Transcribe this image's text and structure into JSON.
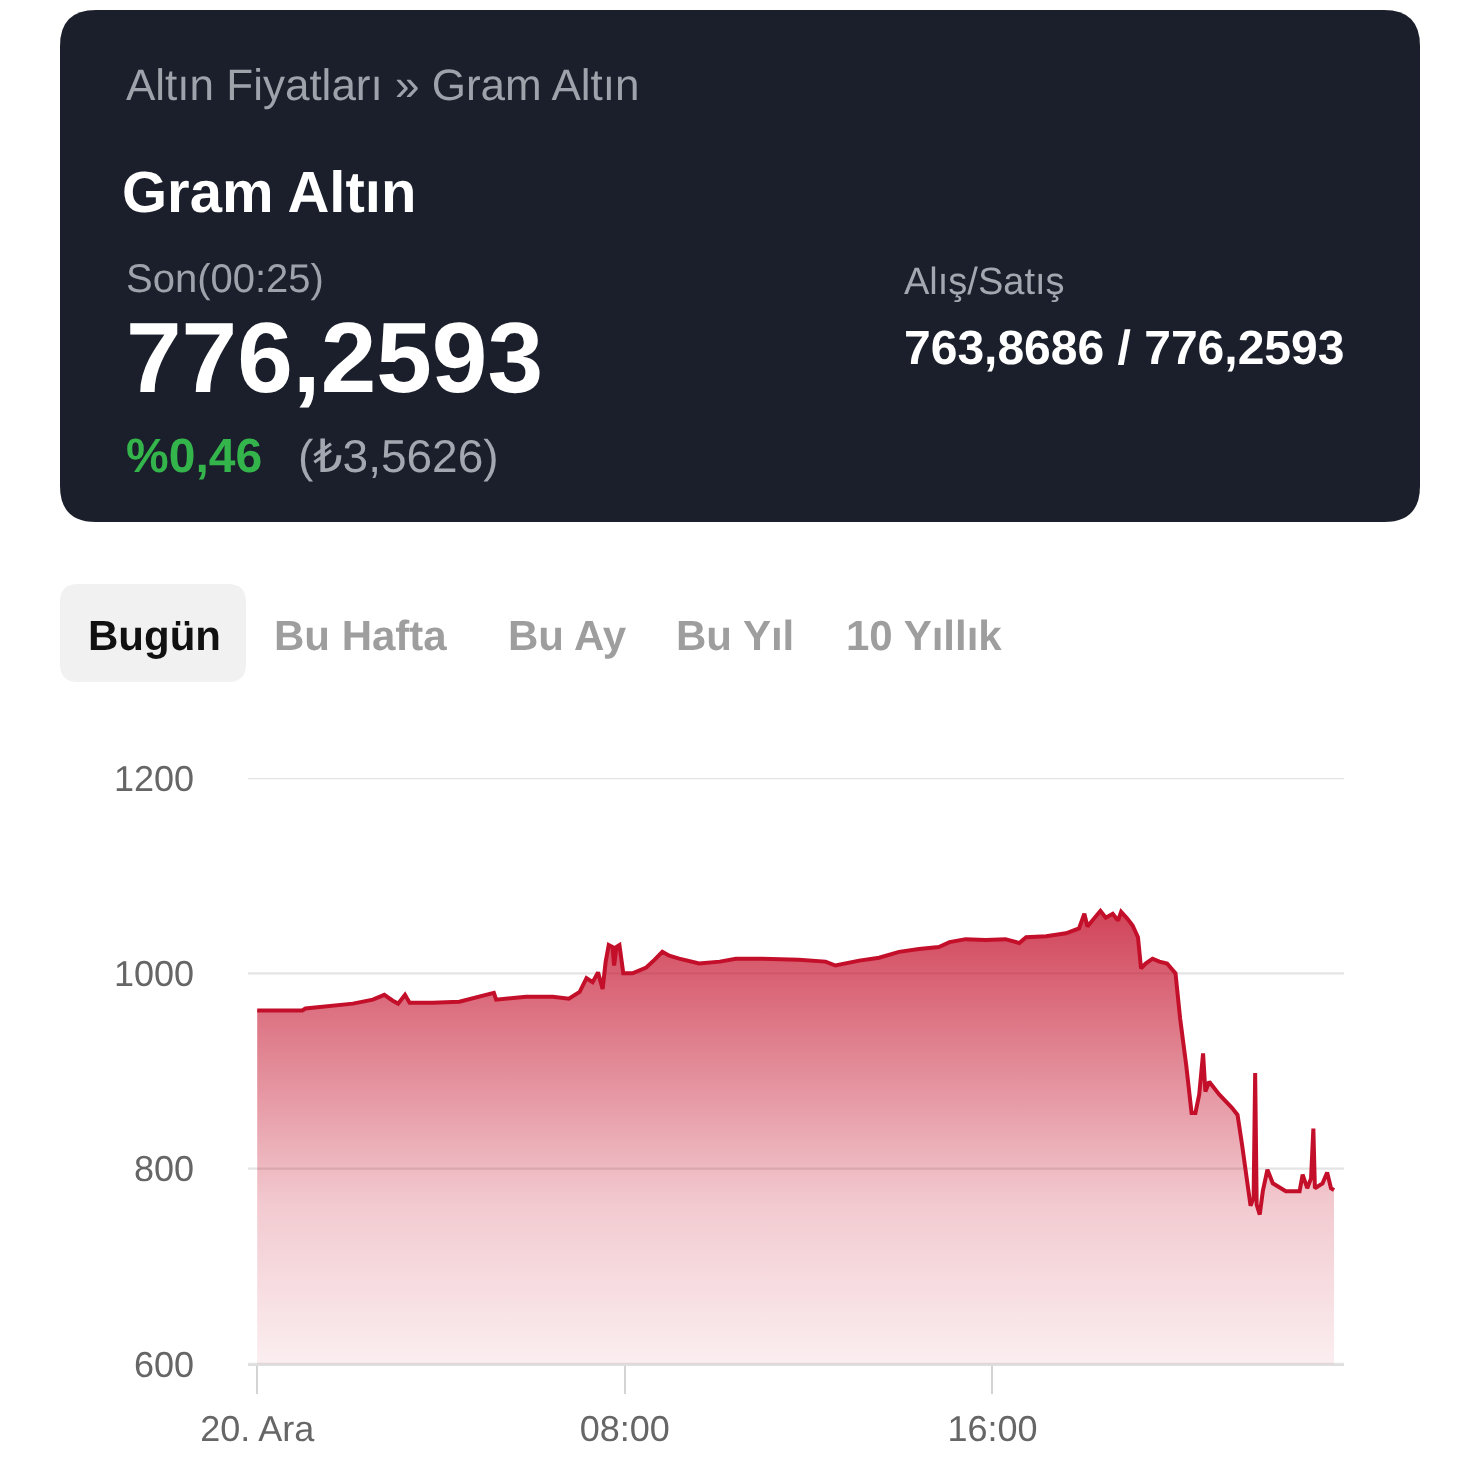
{
  "chart_data": {
    "type": "area",
    "title": "Gram Altın",
    "annotations": [
      "Altın Fiyatları » Gram Altın",
      "Son(00:25)",
      "776,2593",
      "%0,46",
      "(₺3,5626)",
      "Alış/Satış",
      "763,8686 / 776,2593",
      "Bugün",
      "Bu Hafta",
      "Bu Ay",
      "Bu Yıl",
      "10 Yıllık"
    ],
    "x": [
      "--12-20T00:00",
      "--12-20T00:59",
      "--12-20T01:03",
      "--12-20T02:05",
      "--12-20T02:31",
      "--12-20T02:46",
      "--12-20T02:57",
      "--12-20T03:04",
      "--12-20T03:13",
      "--12-20T03:19",
      "--12-20T03:49",
      "--12-20T04:24",
      "--12-20T05:09",
      "--12-20T05:12",
      "--12-20T05:51",
      "--12-20T06:26",
      "--12-20T06:47",
      "--12-20T07:01",
      "--12-20T07:10",
      "--12-20T07:18",
      "--12-20T07:25",
      "--12-20T07:31",
      "--12-20T07:35",
      "--12-20T07:39",
      "--12-20T07:44",
      "--12-20T07:46",
      "--12-20T07:49",
      "--12-20T07:53",
      "--12-20T07:58",
      "--12-20T08:10",
      "--12-20T08:28",
      "--12-20T08:39",
      "--12-20T08:49",
      "--12-20T08:58",
      "--12-20T09:11",
      "--12-20T09:37",
      "--12-20T10:04",
      "--12-20T10:25",
      "--12-20T10:55",
      "--12-20T11:47",
      "--12-20T12:22",
      "--12-20T12:35",
      "--12-20T13:06",
      "--12-20T13:32",
      "--12-20T13:58",
      "--12-20T14:24",
      "--12-20T14:50",
      "--12-20T15:04",
      "--12-20T15:25",
      "--12-20T15:51",
      "--12-20T16:17",
      "--12-20T16:35",
      "--12-20T16:44",
      "--12-20T17:10",
      "--12-20T17:36",
      "--12-20T17:53",
      "--12-20T18:00",
      "--12-20T18:04",
      "--12-20T18:21",
      "--12-20T18:28",
      "--12-20T18:37",
      "--12-20T18:44",
      "--12-20T18:48",
      "--12-20T18:56",
      "--12-20T19:03",
      "--12-20T19:10",
      "--12-20T19:14",
      "--12-20T19:20",
      "--12-20T19:29",
      "--12-20T19:38",
      "--12-20T19:48",
      "--12-20T19:59",
      "--12-20T20:05",
      "--12-20T20:13",
      "--12-20T20:20",
      "--12-20T20:25",
      "--12-20T20:30",
      "--12-20T20:35",
      "--12-20T20:38",
      "--12-20T20:43",
      "--12-20T20:56",
      "--12-20T21:13",
      "--12-20T21:20",
      "--12-20T21:26",
      "--12-20T21:32",
      "--12-20T21:37",
      "--12-20T21:41",
      "--12-20T21:43",
      "--12-20T21:45",
      "--12-20T21:49",
      "--12-20T21:53",
      "--12-20T21:59",
      "--12-20T22:06",
      "--12-20T22:23",
      "--12-20T22:41",
      "--12-20T22:45",
      "--12-20T22:51",
      "--12-20T22:56",
      "--12-20T22:59",
      "--12-20T23:01",
      "--12-20T23:11",
      "--12-20T23:17",
      "--12-20T23:22",
      "--12-20T23:26"
    ],
    "series": [
      {
        "color": "#c40f2a",
        "values": [
          962,
          962,
          964,
          969,
          973,
          978,
          972,
          969,
          978,
          970,
          970,
          971,
          980,
          973,
          976,
          976,
          974,
          981,
          995,
          991,
          1001,
          984,
          1012,
          1029,
          1027,
          1008,
          1027,
          1029,
          1000,
          1000,
          1006,
          1014,
          1022,
          1018,
          1015,
          1010,
          1012,
          1015,
          1015,
          1014,
          1012,
          1008,
          1013,
          1016,
          1022,
          1025,
          1027,
          1032,
          1035,
          1034,
          1035,
          1031,
          1037,
          1038,
          1041,
          1046,
          1061,
          1048,
          1064,
          1057,
          1061,
          1054,
          1063,
          1056,
          1049,
          1037,
          1005,
          1010,
          1015,
          1012,
          1010,
          1000,
          954,
          906,
          857,
          857,
          876,
          918,
          879,
          889,
          876,
          862,
          855,
          824,
          790,
          762,
          770,
          898,
          763,
          753,
          777,
          799,
          785,
          777,
          777,
          794,
          780,
          790,
          841,
          780,
          785,
          796,
          780,
          778
        ]
      }
    ],
    "xlim": [
      "--12-19T23:48",
      "--12-20T23:39"
    ],
    "xticks": [
      {
        "value": "--12-20T00:00",
        "label": "20. Ara"
      },
      {
        "value": "--12-20T08:00",
        "label": "08:00"
      },
      {
        "value": "--12-20T16:00",
        "label": "16:00"
      }
    ],
    "ylim": [
      600,
      1200
    ],
    "yticks": [
      600,
      800,
      1000,
      1200
    ],
    "grid": "y"
  }
}
